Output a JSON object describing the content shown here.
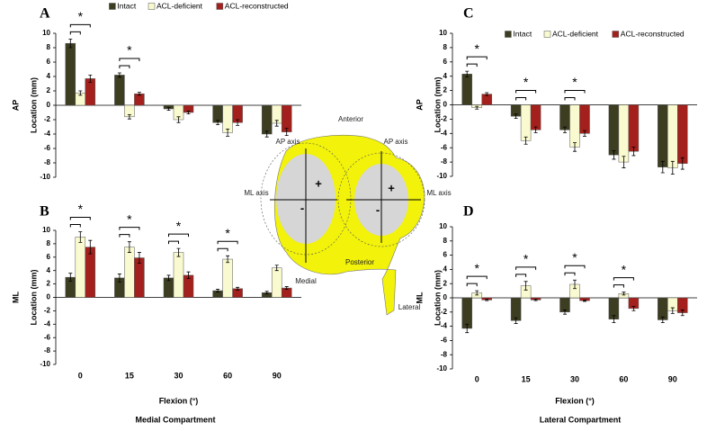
{
  "chart_data": [
    {
      "type": "bar",
      "title": "A",
      "side_label": "AP",
      "ylabel": "Location (mm)",
      "ylim": [
        -10,
        10
      ],
      "yticks": [
        -10,
        -8,
        -6,
        -4,
        -2,
        0,
        2,
        4,
        6,
        8,
        10
      ],
      "legend": true,
      "legend_position": "top-right",
      "series": [
        {
          "name": "Intact",
          "color": "#3d3d22",
          "values": [
            8.6,
            4.2,
            -0.5,
            -2.4,
            -4.0
          ],
          "errors": [
            0.6,
            0.3,
            0.2,
            0.3,
            0.4
          ]
        },
        {
          "name": "ACL-deficient",
          "color": "#fafad0",
          "values": [
            1.7,
            -1.6,
            -2.0,
            -3.8,
            -2.5
          ],
          "errors": [
            0.3,
            0.3,
            0.4,
            0.5,
            0.4
          ]
        },
        {
          "name": "ACL-reconstructed",
          "color": "#a3201c",
          "values": [
            3.7,
            1.6,
            -1.0,
            -2.4,
            -3.7
          ],
          "errors": [
            0.5,
            0.2,
            0.2,
            0.4,
            0.5
          ]
        }
      ],
      "significance": [
        "*",
        "*",
        null,
        null,
        null
      ]
    },
    {
      "type": "bar",
      "title": "B",
      "side_label": "ML",
      "ylabel": "Location (mm)",
      "xlabel": "Flexion (°)",
      "categories": [
        "0",
        "15",
        "30",
        "60",
        "90"
      ],
      "ylim": [
        -10,
        10
      ],
      "yticks": [
        -10,
        -8,
        -6,
        -4,
        -2,
        0,
        2,
        4,
        6,
        8,
        10
      ],
      "legend": false,
      "series": [
        {
          "name": "Intact",
          "color": "#3d3d22",
          "values": [
            3.0,
            2.9,
            2.9,
            1.0,
            0.7
          ],
          "errors": [
            0.6,
            0.6,
            0.4,
            0.2,
            0.2
          ]
        },
        {
          "name": "ACL-deficient",
          "color": "#fafad0",
          "values": [
            9.0,
            7.5,
            6.7,
            5.7,
            4.4
          ],
          "errors": [
            0.8,
            0.8,
            0.6,
            0.5,
            0.4
          ]
        },
        {
          "name": "ACL-reconstructed",
          "color": "#a3201c",
          "values": [
            7.5,
            5.9,
            3.3,
            1.3,
            1.4
          ],
          "errors": [
            1.0,
            0.8,
            0.5,
            0.2,
            0.2
          ]
        }
      ],
      "significance": [
        "*",
        "*",
        "*",
        "*",
        null
      ]
    },
    {
      "type": "bar",
      "title": "C",
      "side_label": "AP",
      "ylabel": "Location (mm)",
      "ylim": [
        -10,
        10
      ],
      "yticks": [
        -10,
        -8,
        -6,
        -4,
        -2,
        0,
        2,
        4,
        6,
        8,
        10
      ],
      "legend": true,
      "legend_position": "top-right",
      "series": [
        {
          "name": "Intact",
          "color": "#3d3d22",
          "values": [
            4.3,
            -1.6,
            -3.5,
            -7.0,
            -8.7
          ],
          "errors": [
            0.4,
            0.3,
            0.4,
            0.6,
            0.8
          ]
        },
        {
          "name": "ACL-deficient",
          "color": "#fafad0",
          "values": [
            -0.4,
            -5.0,
            -5.9,
            -8.0,
            -8.8
          ],
          "errors": [
            0.2,
            0.5,
            0.6,
            0.8,
            0.9
          ]
        },
        {
          "name": "ACL-reconstructed",
          "color": "#a3201c",
          "values": [
            1.5,
            -3.5,
            -4.0,
            -6.5,
            -8.2
          ],
          "errors": [
            0.2,
            0.4,
            0.4,
            0.6,
            0.8
          ]
        }
      ],
      "significance": [
        "*",
        "*",
        "*",
        null,
        null
      ]
    },
    {
      "type": "bar",
      "title": "D",
      "side_label": "ML",
      "ylabel": "Location (mm)",
      "xlabel": "Flexion (°)",
      "categories": [
        "0",
        "15",
        "30",
        "60",
        "90"
      ],
      "ylim": [
        -10,
        10
      ],
      "yticks": [
        -10,
        -8,
        -6,
        -4,
        -2,
        0,
        2,
        4,
        6,
        8,
        10
      ],
      "legend": false,
      "series": [
        {
          "name": "Intact",
          "color": "#3d3d22",
          "values": [
            -4.3,
            -3.2,
            -2.0,
            -3.0,
            -3.1
          ],
          "errors": [
            0.6,
            0.4,
            0.3,
            0.5,
            0.4
          ]
        },
        {
          "name": "ACL-deficient",
          "color": "#fafad0",
          "values": [
            0.7,
            1.7,
            1.9,
            0.6,
            -1.8
          ],
          "errors": [
            0.3,
            0.6,
            0.6,
            0.2,
            0.4
          ]
        },
        {
          "name": "ACL-reconstructed",
          "color": "#a3201c",
          "values": [
            -0.3,
            -0.3,
            -0.4,
            -1.5,
            -2.1
          ],
          "errors": [
            0.1,
            0.1,
            0.1,
            0.3,
            0.4
          ]
        }
      ],
      "significance": [
        "*",
        "*",
        "*",
        "*",
        null
      ]
    }
  ],
  "diagram": {
    "anterior": "Anterior",
    "posterior": "Posterior",
    "medial": "Medial",
    "lateral": "Lateral",
    "ap_axis_left": "AP axis",
    "ap_axis_right": "AP axis",
    "ml_axis_left": "ML axis",
    "ml_axis_right": "ML axis",
    "plus_left": "+",
    "minus_left": "-",
    "plus_right": "+",
    "minus_right": "-"
  },
  "footer": {
    "medial": "Medial Compartment",
    "lateral": "Lateral Compartment"
  }
}
